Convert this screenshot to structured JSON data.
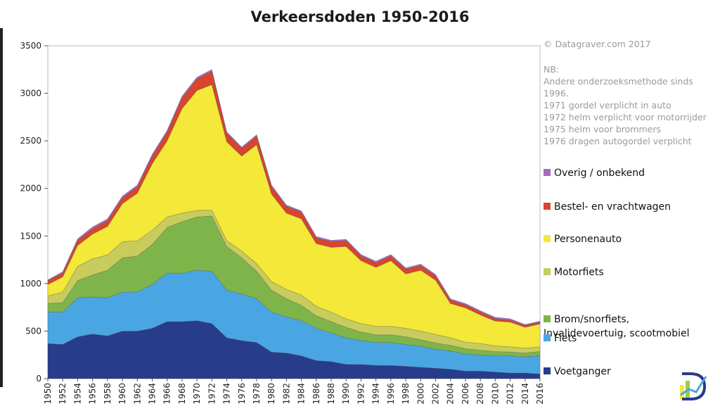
{
  "chart_data": {
    "type": "area",
    "stacked": true,
    "title": "Verkeersdoden 1950-2016",
    "xlabel": "",
    "ylabel": "",
    "ylim": [
      0,
      3500
    ],
    "yticks": [
      0,
      500,
      1000,
      1500,
      2000,
      2500,
      3000,
      3500
    ],
    "xtick_labels": [
      "1950",
      "1952",
      "1954",
      "1956",
      "1958",
      "1960",
      "1962",
      "1964",
      "1966",
      "1968",
      "1970",
      "1972",
      "1974",
      "1976",
      "1978",
      "1980",
      "1982",
      "1984",
      "1986",
      "1988",
      "1990",
      "1992",
      "1994",
      "1996",
      "1998",
      "2000",
      "2002",
      "2004",
      "2006",
      "2008",
      "2010",
      "2012",
      "2014",
      "2016"
    ],
    "years": [
      1950,
      1952,
      1954,
      1956,
      1958,
      1960,
      1962,
      1964,
      1966,
      1968,
      1970,
      1972,
      1974,
      1976,
      1978,
      1980,
      1982,
      1984,
      1986,
      1988,
      1990,
      1992,
      1994,
      1996,
      1998,
      2000,
      2002,
      2004,
      2006,
      2008,
      2010,
      2012,
      2014,
      2016
    ],
    "grid": false,
    "legend_position": "right",
    "series": [
      {
        "name": "Voetganger",
        "color": "#283c8c",
        "values": [
          370,
          360,
          440,
          470,
          450,
          500,
          500,
          530,
          600,
          600,
          610,
          580,
          430,
          400,
          380,
          280,
          270,
          240,
          190,
          180,
          150,
          150,
          140,
          140,
          130,
          120,
          110,
          100,
          80,
          80,
          70,
          60,
          60,
          50
        ]
      },
      {
        "name": "Fiets",
        "color": "#4aa6e2",
        "values": [
          330,
          340,
          410,
          390,
          400,
          410,
          410,
          460,
          510,
          510,
          530,
          550,
          500,
          490,
          460,
          420,
          380,
          370,
          340,
          300,
          280,
          250,
          240,
          240,
          230,
          220,
          200,
          190,
          180,
          170,
          170,
          180,
          170,
          190
        ]
      },
      {
        "name": "Brom/snorfiets, Invalidevoertuig, scootmobiel",
        "color": "#7fb44a",
        "values": [
          90,
          100,
          180,
          230,
          290,
          360,
          380,
          420,
          480,
          540,
          560,
          580,
          460,
          380,
          290,
          230,
          190,
          160,
          130,
          120,
          110,
          90,
          80,
          80,
          80,
          70,
          65,
          60,
          55,
          50,
          45,
          40,
          40,
          45
        ]
      },
      {
        "name": "Motorfiets",
        "color": "#c8cc5c",
        "values": [
          80,
          110,
          150,
          170,
          160,
          170,
          160,
          150,
          110,
          90,
          70,
          60,
          60,
          70,
          80,
          90,
          100,
          110,
          100,
          100,
          90,
          90,
          90,
          90,
          90,
          90,
          90,
          80,
          70,
          70,
          60,
          55,
          50,
          50
        ]
      },
      {
        "name": "Personenauto",
        "color": "#f4e838",
        "values": [
          120,
          160,
          220,
          260,
          300,
          400,
          500,
          700,
          800,
          1100,
          1260,
          1320,
          1040,
          1000,
          1250,
          920,
          800,
          800,
          660,
          680,
          760,
          660,
          620,
          690,
          570,
          640,
          570,
          360,
          360,
          300,
          260,
          260,
          220,
          240
        ]
      },
      {
        "name": "Bestel- en vrachtwagen",
        "color": "#d9442b",
        "values": [
          40,
          40,
          50,
          55,
          60,
          60,
          65,
          80,
          90,
          110,
          120,
          140,
          90,
          80,
          90,
          80,
          70,
          70,
          60,
          60,
          60,
          50,
          50,
          50,
          50,
          50,
          45,
          35,
          30,
          30,
          25,
          20,
          20,
          20
        ]
      },
      {
        "name": "Overig / onbekend",
        "color": "#a66bbd",
        "values": [
          10,
          15,
          20,
          20,
          20,
          20,
          20,
          20,
          20,
          20,
          20,
          20,
          15,
          15,
          15,
          15,
          15,
          15,
          15,
          15,
          15,
          15,
          15,
          15,
          15,
          15,
          15,
          15,
          15,
          15,
          15,
          15,
          10,
          10
        ]
      }
    ]
  },
  "credit": "© Datagraver.com  2017",
  "notes": [
    "NB:",
    "Andere onderzoeksmethode sinds 1996.",
    "1971 gordel verplicht in auto",
    "1972 helm verplicht voor motorrijder",
    "1975 helm voor brommers",
    "1976 dragen autogordel verplicht"
  ],
  "legend": [
    {
      "label": "Overig / onbekend",
      "color": "#a66bbd"
    },
    {
      "label": "Bestel- en vrachtwagen",
      "color": "#d9442b"
    },
    {
      "label": "Personenauto",
      "color": "#f4e838"
    },
    {
      "label": "Motorfiets",
      "color": "#c8cc5c"
    },
    {
      "label": "Brom/snorfiets,\nInvalidevoertuig, scootmobiel",
      "color": "#7fb44a"
    },
    {
      "label": "Fiets",
      "color": "#4aa6e2"
    },
    {
      "label": "Voetganger",
      "color": "#283c8c"
    }
  ],
  "logo": {
    "name": "datagraver-logo",
    "color": "#2a3a8c",
    "accent": "#f4e838"
  }
}
